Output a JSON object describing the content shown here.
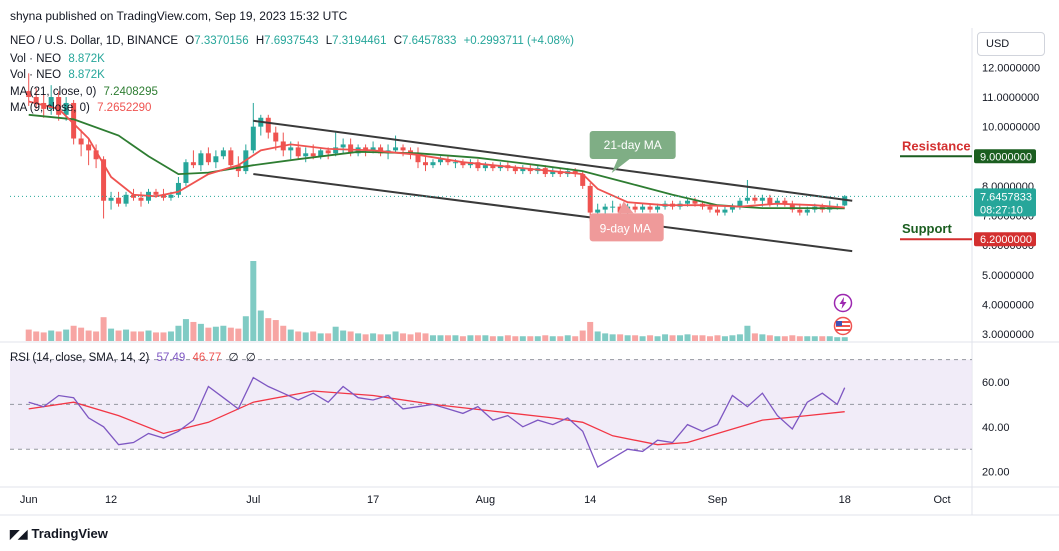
{
  "publisher": "shyna published on TradingView.com, Sep 19, 2023 15:32 UTC",
  "currency_button": "USD",
  "footer": {
    "logo_text": "TradingView",
    "icon": "tradingview-logo-icon"
  },
  "legend": {
    "symbol": "NEO / U.S. Dollar, 1D, BINANCE",
    "ohlc": {
      "o_label": "O",
      "o": "7.3370156",
      "h_label": "H",
      "h": "7.6937543",
      "l_label": "L",
      "l": "7.3194461",
      "c_label": "C",
      "c": "7.6457833",
      "change": "+0.2993711 (+4.08%)"
    },
    "vol1_label": "Vol · NEO",
    "vol1_value": "8.872K",
    "vol2_label": "Vol · NEO",
    "vol2_value": "8.872K",
    "ma21_label": "MA (21, close, 0)",
    "ma21_value": "7.2408295",
    "ma9_label": "MA (9, close, 0)",
    "ma9_value": "7.2652290",
    "rsi_label": "RSI (14, close, SMA, 14, 2)",
    "rsi_value": "57.49",
    "rsi_ma_value": "46.77",
    "rsi_extra1": "∅",
    "rsi_extra2": "∅"
  },
  "colors": {
    "up": "#26a69a",
    "down": "#ef5350",
    "ma9": "#ef5350",
    "ma21": "#2e7d32",
    "rsi": "#7e57c2",
    "rsi_ma": "#f23645",
    "channel": "#3a3a3a",
    "resistance": "#1b5e20",
    "support": "#d32f2f"
  },
  "chart_data": {
    "type": "candlestick",
    "price_axis": {
      "ticks": [
        "12.0000000",
        "11.0000000",
        "10.0000000",
        "9.0000000",
        "8.0000000",
        "7.0000000",
        "6.0000000",
        "5.0000000",
        "4.0000000",
        "3.0000000"
      ],
      "ylim": [
        2.9,
        12.25
      ]
    },
    "rsi_axis": {
      "ticks": [
        "60.00",
        "40.00",
        "20.00"
      ],
      "ylim": [
        14,
        77
      ],
      "band": [
        30,
        70
      ],
      "mid": 50
    },
    "time_axis": {
      "labels": [
        "Jun",
        "12",
        "Jul",
        "17",
        "Aug",
        "14",
        "Sep",
        "18",
        "Oct"
      ],
      "label_days": [
        0,
        11,
        30,
        46,
        61,
        75,
        92,
        109,
        122
      ],
      "xlim": [
        -2.5,
        126
      ]
    },
    "candles": [
      [
        11.2,
        11.8,
        10.7,
        11.0
      ],
      [
        11.0,
        11.3,
        10.6,
        10.8
      ],
      [
        10.8,
        11.1,
        10.3,
        10.6
      ],
      [
        10.6,
        11.4,
        10.4,
        11.0
      ],
      [
        11.0,
        11.2,
        10.2,
        10.4
      ],
      [
        10.4,
        11.0,
        10.2,
        10.8
      ],
      [
        10.8,
        10.9,
        9.4,
        9.6
      ],
      [
        9.6,
        9.9,
        9.0,
        9.4
      ],
      [
        9.4,
        9.6,
        8.7,
        9.2
      ],
      [
        9.2,
        9.4,
        8.6,
        8.9
      ],
      [
        8.9,
        9.0,
        6.9,
        7.5
      ],
      [
        7.5,
        7.8,
        7.2,
        7.6
      ],
      [
        7.6,
        7.8,
        7.3,
        7.4
      ],
      [
        7.4,
        7.8,
        7.3,
        7.7
      ],
      [
        7.7,
        7.9,
        7.5,
        7.6
      ],
      [
        7.6,
        7.8,
        7.3,
        7.5
      ],
      [
        7.5,
        7.9,
        7.4,
        7.8
      ],
      [
        7.8,
        7.9,
        7.6,
        7.7
      ],
      [
        7.7,
        7.9,
        7.5,
        7.6
      ],
      [
        7.6,
        7.8,
        7.5,
        7.7
      ],
      [
        7.7,
        8.3,
        7.6,
        8.1
      ],
      [
        8.1,
        8.9,
        8.0,
        8.8
      ],
      [
        8.8,
        9.2,
        8.6,
        8.7
      ],
      [
        8.7,
        9.2,
        8.5,
        9.1
      ],
      [
        9.1,
        9.3,
        8.7,
        8.8
      ],
      [
        8.8,
        9.2,
        8.6,
        9.0
      ],
      [
        9.0,
        9.3,
        8.9,
        9.2
      ],
      [
        9.2,
        9.3,
        8.6,
        8.7
      ],
      [
        8.7,
        9.0,
        8.3,
        8.5
      ],
      [
        8.5,
        9.4,
        8.4,
        9.2
      ],
      [
        9.2,
        10.8,
        9.1,
        10.0
      ],
      [
        10.0,
        10.4,
        9.7,
        10.3
      ],
      [
        10.3,
        10.4,
        9.6,
        9.8
      ],
      [
        9.8,
        10.0,
        9.2,
        9.5
      ],
      [
        9.5,
        9.8,
        9.0,
        9.2
      ],
      [
        9.2,
        9.5,
        8.9,
        9.3
      ],
      [
        9.3,
        9.5,
        8.9,
        9.0
      ],
      [
        9.0,
        9.3,
        8.8,
        9.1
      ],
      [
        9.1,
        9.4,
        8.9,
        9.0
      ],
      [
        9.0,
        9.3,
        8.9,
        9.2
      ],
      [
        9.2,
        9.3,
        8.9,
        9.1
      ],
      [
        9.1,
        9.8,
        9.0,
        9.3
      ],
      [
        9.3,
        9.6,
        9.1,
        9.4
      ],
      [
        9.4,
        9.6,
        9.0,
        9.1
      ],
      [
        9.1,
        9.4,
        9.0,
        9.3
      ],
      [
        9.3,
        9.4,
        9.0,
        9.2
      ],
      [
        9.2,
        9.5,
        9.1,
        9.3
      ],
      [
        9.3,
        9.4,
        9.0,
        9.1
      ],
      [
        9.1,
        9.4,
        8.9,
        9.2
      ],
      [
        9.2,
        9.7,
        9.1,
        9.3
      ],
      [
        9.3,
        9.4,
        9.0,
        9.2
      ],
      [
        9.2,
        9.3,
        8.9,
        9.1
      ],
      [
        9.1,
        9.3,
        8.6,
        8.8
      ],
      [
        8.8,
        9.0,
        8.5,
        8.7
      ],
      [
        8.7,
        8.9,
        8.6,
        8.8
      ],
      [
        8.8,
        9.0,
        8.7,
        8.9
      ],
      [
        8.9,
        9.0,
        8.7,
        8.8
      ],
      [
        8.8,
        8.9,
        8.6,
        8.8
      ],
      [
        8.8,
        8.9,
        8.6,
        8.7
      ],
      [
        8.7,
        8.9,
        8.6,
        8.8
      ],
      [
        8.8,
        8.9,
        8.5,
        8.6
      ],
      [
        8.6,
        8.8,
        8.5,
        8.7
      ],
      [
        8.7,
        8.8,
        8.5,
        8.6
      ],
      [
        8.6,
        8.8,
        8.5,
        8.7
      ],
      [
        8.7,
        8.8,
        8.5,
        8.6
      ],
      [
        8.6,
        8.7,
        8.4,
        8.5
      ],
      [
        8.5,
        8.7,
        8.4,
        8.6
      ],
      [
        8.6,
        8.7,
        8.4,
        8.5
      ],
      [
        8.5,
        8.7,
        8.4,
        8.6
      ],
      [
        8.6,
        8.7,
        8.3,
        8.4
      ],
      [
        8.4,
        8.6,
        8.3,
        8.5
      ],
      [
        8.5,
        8.6,
        8.3,
        8.4
      ],
      [
        8.4,
        8.6,
        8.3,
        8.5
      ],
      [
        8.5,
        8.6,
        8.3,
        8.4
      ],
      [
        8.4,
        8.5,
        7.9,
        8.0
      ],
      [
        8.0,
        8.1,
        6.8,
        7.1
      ],
      [
        7.1,
        7.4,
        7.0,
        7.2
      ],
      [
        7.2,
        7.4,
        7.0,
        7.3
      ],
      [
        7.3,
        7.5,
        7.1,
        7.3
      ],
      [
        7.3,
        7.4,
        7.0,
        7.1
      ],
      [
        7.1,
        7.4,
        7.0,
        7.3
      ],
      [
        7.3,
        7.4,
        7.1,
        7.2
      ],
      [
        7.2,
        7.4,
        7.1,
        7.3
      ],
      [
        7.3,
        7.4,
        7.1,
        7.2
      ],
      [
        7.2,
        7.4,
        7.1,
        7.3
      ],
      [
        7.3,
        7.5,
        7.2,
        7.4
      ],
      [
        7.4,
        7.5,
        7.2,
        7.3
      ],
      [
        7.3,
        7.5,
        7.2,
        7.4
      ],
      [
        7.4,
        7.6,
        7.3,
        7.5
      ],
      [
        7.5,
        7.6,
        7.3,
        7.4
      ],
      [
        7.4,
        7.5,
        7.2,
        7.3
      ],
      [
        7.3,
        7.4,
        7.1,
        7.2
      ],
      [
        7.2,
        7.3,
        7.0,
        7.1
      ],
      [
        7.1,
        7.3,
        7.0,
        7.2
      ],
      [
        7.2,
        7.4,
        7.1,
        7.3
      ],
      [
        7.3,
        7.6,
        7.2,
        7.5
      ],
      [
        7.5,
        8.2,
        7.4,
        7.6
      ],
      [
        7.6,
        7.7,
        7.4,
        7.5
      ],
      [
        7.5,
        7.7,
        7.3,
        7.6
      ],
      [
        7.6,
        7.7,
        7.3,
        7.4
      ],
      [
        7.4,
        7.6,
        7.3,
        7.5
      ],
      [
        7.5,
        7.6,
        7.3,
        7.4
      ],
      [
        7.4,
        7.5,
        7.1,
        7.2
      ],
      [
        7.2,
        7.4,
        7.0,
        7.1
      ],
      [
        7.1,
        7.3,
        7.0,
        7.2
      ],
      [
        7.2,
        7.4,
        7.1,
        7.3
      ],
      [
        7.3,
        7.4,
        7.1,
        7.2
      ],
      [
        7.2,
        7.5,
        7.1,
        7.3
      ],
      [
        7.3,
        7.4,
        7.2,
        7.3
      ],
      [
        7.34,
        7.69,
        7.32,
        7.65
      ]
    ],
    "volume": {
      "values": [
        1.2,
        1.0,
        0.9,
        1.1,
        1.0,
        1.2,
        1.6,
        1.4,
        1.1,
        1.0,
        2.5,
        1.3,
        1.1,
        1.2,
        1.0,
        1.0,
        1.1,
        0.9,
        0.9,
        1.0,
        1.6,
        2.3,
        2.0,
        1.8,
        1.4,
        1.5,
        1.6,
        1.4,
        1.3,
        2.6,
        8.4,
        3.2,
        2.4,
        2.2,
        1.6,
        1.2,
        1.0,
        0.9,
        1.0,
        0.8,
        0.8,
        1.5,
        1.1,
        1.0,
        0.8,
        0.7,
        0.8,
        0.7,
        0.7,
        1.0,
        0.8,
        0.7,
        0.9,
        0.8,
        0.6,
        0.6,
        0.6,
        0.6,
        0.5,
        0.6,
        0.6,
        0.6,
        0.5,
        0.5,
        0.6,
        0.5,
        0.5,
        0.5,
        0.5,
        0.6,
        0.5,
        0.5,
        0.6,
        0.5,
        1.1,
        2.0,
        1.0,
        0.8,
        0.7,
        0.7,
        0.6,
        0.6,
        0.5,
        0.6,
        0.5,
        0.7,
        0.6,
        0.6,
        0.7,
        0.6,
        0.6,
        0.5,
        0.6,
        0.5,
        0.6,
        0.7,
        1.6,
        0.8,
        0.7,
        0.6,
        0.5,
        0.5,
        0.6,
        0.5,
        0.5,
        0.5,
        0.5,
        0.5,
        0.4,
        0.4
      ],
      "max": 8.4
    },
    "ma9": [
      [
        0,
        10.85
      ],
      [
        4,
        10.6
      ],
      [
        8,
        9.6
      ],
      [
        11,
        8.3
      ],
      [
        14,
        7.7
      ],
      [
        17,
        7.65
      ],
      [
        20,
        7.8
      ],
      [
        24,
        8.4
      ],
      [
        28,
        8.7
      ],
      [
        31,
        9.2
      ],
      [
        35,
        9.4
      ],
      [
        40,
        9.25
      ],
      [
        46,
        9.2
      ],
      [
        52,
        9.05
      ],
      [
        58,
        8.8
      ],
      [
        64,
        8.65
      ],
      [
        70,
        8.5
      ],
      [
        74,
        8.4
      ],
      [
        76,
        7.9
      ],
      [
        80,
        7.45
      ],
      [
        85,
        7.35
      ],
      [
        90,
        7.35
      ],
      [
        95,
        7.3
      ],
      [
        100,
        7.4
      ],
      [
        105,
        7.35
      ],
      [
        109,
        7.27
      ]
    ],
    "ma21": [
      [
        0,
        10.4
      ],
      [
        6,
        10.25
      ],
      [
        12,
        9.7
      ],
      [
        16,
        9.0
      ],
      [
        20,
        8.4
      ],
      [
        24,
        8.45
      ],
      [
        30,
        8.7
      ],
      [
        36,
        8.9
      ],
      [
        44,
        9.15
      ],
      [
        52,
        9.1
      ],
      [
        60,
        8.95
      ],
      [
        68,
        8.7
      ],
      [
        74,
        8.5
      ],
      [
        80,
        8.1
      ],
      [
        86,
        7.7
      ],
      [
        92,
        7.35
      ],
      [
        98,
        7.25
      ],
      [
        104,
        7.25
      ],
      [
        109,
        7.24
      ]
    ],
    "trend_lines": {
      "upper": [
        [
          30,
          10.2
        ],
        [
          110,
          7.5
        ]
      ],
      "lower": [
        [
          30,
          8.4
        ],
        [
          110,
          5.8
        ]
      ]
    },
    "levels": {
      "resistance": {
        "label": "Resistance",
        "value": "9.0000000"
      },
      "support": {
        "label": "Support",
        "value": "6.2000000"
      }
    },
    "annotations": {
      "ma21": "21-day MA",
      "ma9": "9-day MA"
    },
    "last_price": {
      "value": "7.6457833",
      "countdown": "08:27:10"
    },
    "rsi": [
      [
        0,
        51
      ],
      [
        2,
        49
      ],
      [
        4,
        54
      ],
      [
        6,
        53
      ],
      [
        8,
        44
      ],
      [
        10,
        40
      ],
      [
        12,
        32
      ],
      [
        14,
        33
      ],
      [
        16,
        37
      ],
      [
        18,
        35
      ],
      [
        20,
        38
      ],
      [
        22,
        43
      ],
      [
        24,
        58
      ],
      [
        26,
        53
      ],
      [
        28,
        48
      ],
      [
        30,
        62
      ],
      [
        32,
        58
      ],
      [
        34,
        55
      ],
      [
        36,
        52
      ],
      [
        38,
        55
      ],
      [
        40,
        51
      ],
      [
        42,
        58
      ],
      [
        44,
        53
      ],
      [
        46,
        52
      ],
      [
        48,
        54
      ],
      [
        50,
        48
      ],
      [
        52,
        49
      ],
      [
        54,
        50
      ],
      [
        56,
        48
      ],
      [
        58,
        46
      ],
      [
        60,
        49
      ],
      [
        62,
        43
      ],
      [
        64,
        45
      ],
      [
        66,
        40
      ],
      [
        68,
        43
      ],
      [
        70,
        41
      ],
      [
        72,
        44
      ],
      [
        74,
        38
      ],
      [
        76,
        22
      ],
      [
        78,
        26
      ],
      [
        80,
        30
      ],
      [
        82,
        29
      ],
      [
        84,
        34
      ],
      [
        86,
        33
      ],
      [
        88,
        41
      ],
      [
        90,
        38
      ],
      [
        92,
        41
      ],
      [
        94,
        54
      ],
      [
        96,
        49
      ],
      [
        98,
        55
      ],
      [
        100,
        45
      ],
      [
        102,
        39
      ],
      [
        104,
        51
      ],
      [
        106,
        55
      ],
      [
        108,
        50
      ],
      [
        109,
        57.49
      ]
    ],
    "rsi_ma": [
      [
        0,
        48
      ],
      [
        6,
        51
      ],
      [
        12,
        45
      ],
      [
        18,
        37
      ],
      [
        24,
        42
      ],
      [
        30,
        51
      ],
      [
        38,
        56
      ],
      [
        46,
        54
      ],
      [
        54,
        50
      ],
      [
        62,
        47
      ],
      [
        70,
        44
      ],
      [
        74,
        42
      ],
      [
        78,
        36
      ],
      [
        84,
        32
      ],
      [
        88,
        33
      ],
      [
        92,
        37
      ],
      [
        98,
        43
      ],
      [
        104,
        45
      ],
      [
        109,
        46.77
      ]
    ]
  }
}
